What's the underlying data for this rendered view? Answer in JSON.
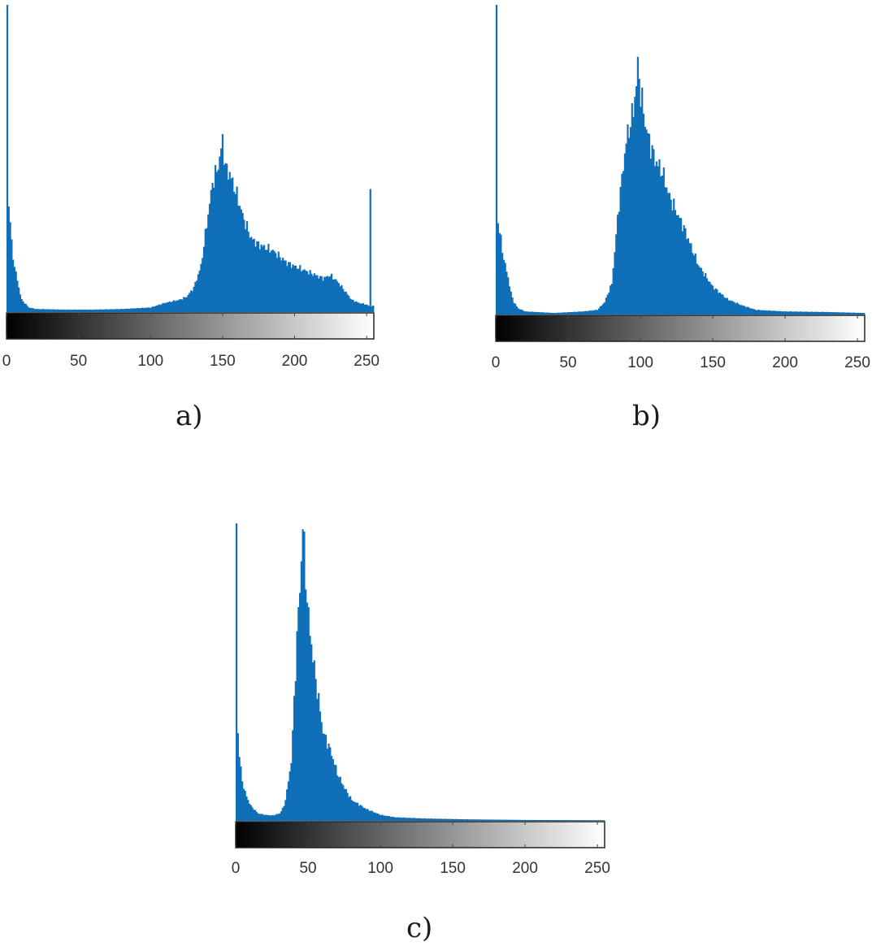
{
  "chart_data": [
    {
      "type": "bar",
      "panel_label": "a)",
      "xticks": [
        0,
        50,
        100,
        150,
        200,
        250
      ],
      "xlim": [
        0,
        255
      ],
      "colorbar": "grayscale",
      "bar_color": "#0f6fb8",
      "bins": [
        0,
        1,
        2,
        3,
        4,
        5,
        8,
        10,
        15,
        20,
        40,
        60,
        80,
        100,
        110,
        120,
        125,
        130,
        135,
        140,
        143,
        146,
        148,
        150,
        152,
        155,
        160,
        165,
        170,
        175,
        180,
        185,
        190,
        195,
        200,
        210,
        220,
        225,
        230,
        235,
        240,
        245,
        250,
        252,
        253,
        254,
        255
      ],
      "values": [
        1.0,
        0.35,
        0.3,
        0.22,
        0.18,
        0.15,
        0.08,
        0.04,
        0.015,
        0.01,
        0.008,
        0.008,
        0.01,
        0.015,
        0.03,
        0.04,
        0.05,
        0.08,
        0.15,
        0.32,
        0.42,
        0.46,
        0.5,
        0.56,
        0.47,
        0.45,
        0.38,
        0.3,
        0.24,
        0.22,
        0.21,
        0.2,
        0.18,
        0.16,
        0.15,
        0.13,
        0.11,
        0.12,
        0.1,
        0.07,
        0.04,
        0.03,
        0.025,
        0.02,
        0.4,
        0.02,
        0.02
      ]
    },
    {
      "type": "bar",
      "panel_label": "b)",
      "xticks": [
        0,
        50,
        100,
        150,
        200,
        250
      ],
      "xlim": [
        0,
        255
      ],
      "colorbar": "grayscale",
      "bar_color": "#0f6fb8",
      "bins": [
        0,
        1,
        2,
        3,
        4,
        5,
        8,
        10,
        12,
        15,
        20,
        40,
        60,
        70,
        75,
        80,
        85,
        90,
        95,
        97,
        98,
        100,
        103,
        106,
        110,
        115,
        120,
        125,
        130,
        135,
        140,
        150,
        160,
        170,
        180,
        200,
        230,
        255
      ],
      "values": [
        1.0,
        0.3,
        0.27,
        0.24,
        0.21,
        0.18,
        0.12,
        0.07,
        0.04,
        0.02,
        0.01,
        0.005,
        0.01,
        0.015,
        0.04,
        0.1,
        0.36,
        0.56,
        0.66,
        0.75,
        0.8,
        0.72,
        0.62,
        0.56,
        0.5,
        0.46,
        0.38,
        0.33,
        0.28,
        0.22,
        0.16,
        0.09,
        0.05,
        0.03,
        0.015,
        0.01,
        0.008,
        0.005
      ]
    },
    {
      "type": "bar",
      "panel_label": "c)",
      "xticks": [
        0,
        50,
        100,
        150,
        200,
        250
      ],
      "xlim": [
        0,
        255
      ],
      "colorbar": "grayscale",
      "bar_color": "#0f6fb8",
      "bins": [
        0,
        1,
        2,
        3,
        4,
        5,
        8,
        10,
        15,
        20,
        25,
        30,
        33,
        35,
        38,
        40,
        42,
        44,
        45,
        46,
        48,
        50,
        53,
        56,
        60,
        65,
        70,
        75,
        80,
        90,
        100,
        110,
        130,
        160,
        200,
        255
      ],
      "values": [
        1.0,
        0.3,
        0.22,
        0.17,
        0.14,
        0.11,
        0.07,
        0.05,
        0.025,
        0.02,
        0.018,
        0.025,
        0.05,
        0.1,
        0.2,
        0.4,
        0.62,
        0.78,
        0.88,
        1.0,
        0.82,
        0.68,
        0.55,
        0.44,
        0.3,
        0.24,
        0.16,
        0.11,
        0.07,
        0.04,
        0.02,
        0.012,
        0.008,
        0.005,
        0.003,
        0.002
      ]
    }
  ]
}
